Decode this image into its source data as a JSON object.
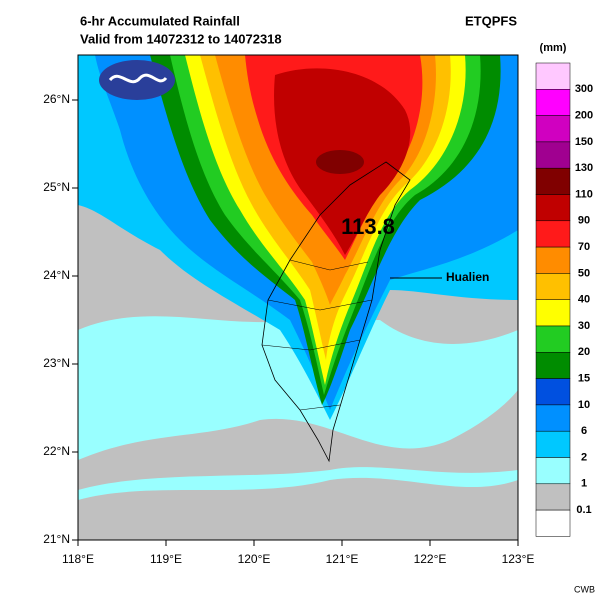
{
  "header": {
    "title": "6-hr Accumulated Rainfall",
    "subtitle": "Valid from 14072312 to 14072318",
    "product": "ETQPFS",
    "credit": "CWB"
  },
  "map": {
    "lon_labels": [
      "118°E",
      "119°E",
      "120°E",
      "121°E",
      "122°E",
      "123°E"
    ],
    "lat_labels": [
      "26°N",
      "25°N",
      "24°N",
      "23°N",
      "22°N",
      "21°N"
    ],
    "max_label": "113.8",
    "place": "Hualien"
  },
  "colorbar": {
    "unit": "(mm)",
    "labels": [
      "300",
      "200",
      "150",
      "130",
      "110",
      "90",
      "70",
      "50",
      "40",
      "30",
      "20",
      "15",
      "10",
      "6",
      "2",
      "1",
      "0.1"
    ],
    "colors": [
      "#ffc8ff",
      "#ff00ff",
      "#d000c0",
      "#a00090",
      "#800000",
      "#c00000",
      "#ff1a1a",
      "#ff8c00",
      "#ffc000",
      "#ffff00",
      "#22cc22",
      "#008c00",
      "#0050e0",
      "#0090ff",
      "#00c8ff",
      "#99ffff",
      "#c0c0c0",
      "#ffffff"
    ]
  }
}
